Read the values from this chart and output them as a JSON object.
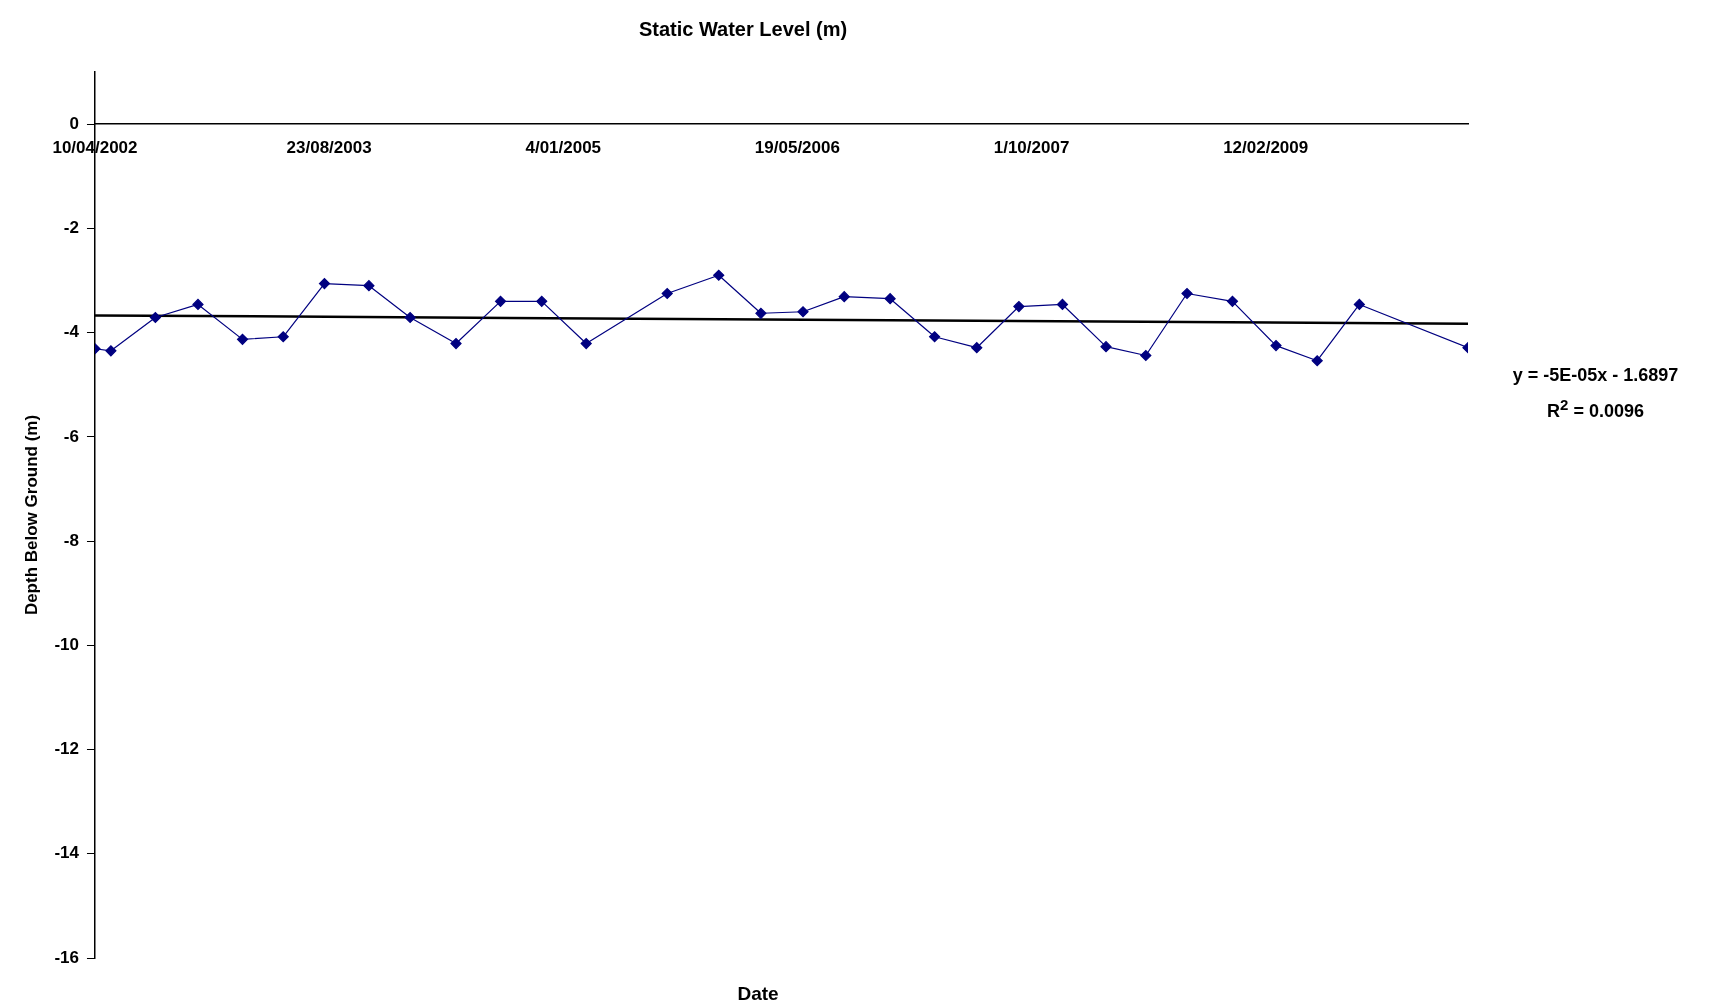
{
  "chart_data": {
    "type": "line",
    "title": "Static Water Level (m)",
    "xlabel": "Date",
    "ylabel": "Depth Below Ground (m)",
    "xlim": [
      "2002-04-10",
      "2010-04-20"
    ],
    "xticks": [
      {
        "value": "2002-04-10",
        "label": "10/04/2002"
      },
      {
        "value": "2003-08-23",
        "label": "23/08/2003"
      },
      {
        "value": "2005-01-04",
        "label": "4/01/2005"
      },
      {
        "value": "2006-05-19",
        "label": "19/05/2006"
      },
      {
        "value": "2007-10-01",
        "label": "1/10/2007"
      },
      {
        "value": "2009-02-12",
        "label": "12/02/2009"
      }
    ],
    "ylim": [
      -16,
      1
    ],
    "yticks": [
      0,
      -2,
      -4,
      -6,
      -8,
      -10,
      -12,
      -14,
      -16
    ],
    "grid": false,
    "legend": false,
    "marker": "diamond",
    "line_style": "solid",
    "series": [
      {
        "color": "#000080",
        "x": [
          "2002-04-10",
          "2002-05-14",
          "2002-08-17",
          "2002-11-16",
          "2003-02-19",
          "2003-05-17",
          "2003-08-13",
          "2003-11-16",
          "2004-02-12",
          "2004-05-20",
          "2004-08-23",
          "2004-11-19",
          "2005-02-22",
          "2005-08-14",
          "2005-12-02",
          "2006-03-02",
          "2006-05-31",
          "2006-08-27",
          "2006-12-03",
          "2007-03-08",
          "2007-06-06",
          "2007-09-04",
          "2007-12-06",
          "2008-03-08",
          "2008-06-01",
          "2008-08-28",
          "2008-12-03",
          "2009-03-06",
          "2009-06-02",
          "2009-08-31",
          "2010-04-20"
        ],
        "values": [
          -4.31,
          -4.35,
          -3.71,
          -3.46,
          -4.13,
          -4.08,
          -3.06,
          -3.1,
          -3.71,
          -4.21,
          -3.4,
          -3.4,
          -4.21,
          -3.25,
          -2.9,
          -3.63,
          -3.6,
          -3.31,
          -3.35,
          -4.08,
          -4.29,
          -3.5,
          -3.46,
          -4.27,
          -4.44,
          -3.25,
          -3.4,
          -4.25,
          -4.54,
          -3.46,
          -4.29
        ]
      },
      {
        "type": "line",
        "color": "#000000",
        "marker": "none",
        "x": [
          "2002-04-10",
          "2010-04-20"
        ],
        "values": [
          -3.67,
          -3.83
        ]
      }
    ],
    "annotations": [
      "y = -5E-05x - 1.6897",
      "R$^{2}$ = 0.0096"
    ]
  }
}
